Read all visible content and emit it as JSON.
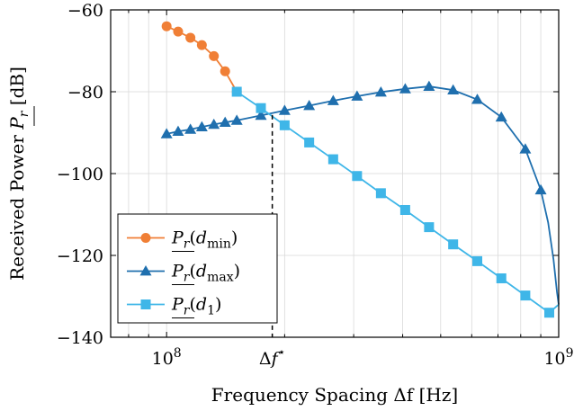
{
  "chart_data": {
    "type": "line",
    "title": "",
    "xlabel": "Frequency Spacing Δf [Hz]",
    "ylabel": "Received Power P_r [dB]",
    "xscale": "log",
    "xlim": [
      72000000,
      1000000000
    ],
    "ylim": [
      -140,
      -60
    ],
    "grid": true,
    "legend_position": "bottom-left",
    "x_ticks": [
      {
        "value": 100000000,
        "base": "10",
        "exp": "8"
      },
      {
        "value": 1000000000,
        "base": "10",
        "exp": "9"
      }
    ],
    "y_ticks": [
      {
        "value": -60,
        "label": "−60"
      },
      {
        "value": -80,
        "label": "−80"
      },
      {
        "value": -100,
        "label": "−100"
      },
      {
        "value": -120,
        "label": "−120"
      },
      {
        "value": -140,
        "label": "−140"
      }
    ],
    "annotation": {
      "x": 186000000,
      "y": -85.7,
      "label": "Δf",
      "label_sup": "⋆",
      "style": "dashed-vertical"
    },
    "series": [
      {
        "name": "P_r(d_min)",
        "name_main": "P",
        "name_sub": "r",
        "name_arg": "min",
        "color": "#f07f36",
        "marker": "circle",
        "x": [
          100000000,
          107000000,
          115000000,
          123000000,
          132000000,
          141000000,
          151000000
        ],
        "y": [
          -64,
          -65.3,
          -66.8,
          -68.6,
          -71.3,
          -75,
          -80
        ]
      },
      {
        "name": "P_r(d_max)",
        "name_main": "P",
        "name_sub": "r",
        "name_arg": "max",
        "color": "#1f6fae",
        "marker": "triangle",
        "x": [
          100000000,
          107000000,
          115000000,
          123000000,
          132000000,
          141000000,
          151000000,
          174000000,
          200000000,
          231000000,
          266000000,
          306000000,
          352000000,
          406000000,
          467000000,
          538000000,
          620000000,
          714000000,
          822000000,
          900000000,
          940000000,
          970000000,
          990000000,
          1000000000
        ],
        "y": [
          -90.3,
          -89.7,
          -89.2,
          -88.6,
          -88,
          -87.5,
          -87,
          -85.8,
          -84.6,
          -83.4,
          -82.2,
          -81.1,
          -80.1,
          -79.3,
          -78.7,
          -79.6,
          -81.9,
          -86.2,
          -94,
          -104,
          -112,
          -121,
          -129,
          -132
        ]
      },
      {
        "name": "P_r(d_1)",
        "name_main": "P",
        "name_sub": "r",
        "name_arg": "1",
        "color": "#3fb6e8",
        "marker": "square",
        "x": [
          151000000,
          174000000,
          200000000,
          231000000,
          266000000,
          306000000,
          352000000,
          406000000,
          467000000,
          538000000,
          620000000,
          714000000,
          822000000,
          946000000,
          1000000000
        ],
        "y": [
          -80,
          -84,
          -88.2,
          -92.4,
          -96.5,
          -100.6,
          -104.8,
          -108.9,
          -113.1,
          -117.3,
          -121.4,
          -125.6,
          -129.8,
          -134,
          -132
        ]
      }
    ]
  }
}
